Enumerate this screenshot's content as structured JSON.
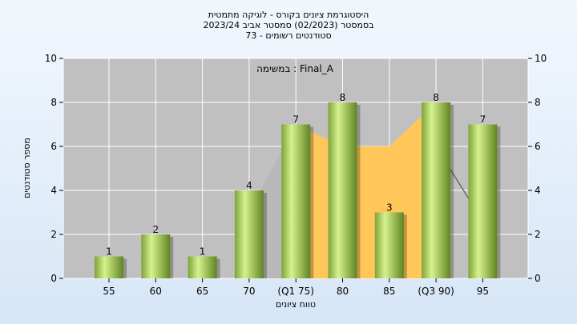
{
  "chart_data": {
    "type": "bar",
    "title_lines": [
      "היסטוגרמת ציונים בקורס - לוגיקה מתמטית",
      "בסמסטר  (02/2023)  סמסטר אביב 2023/24",
      "סטודנטים רשומים - 73"
    ],
    "xlabel": "טווח ציונים",
    "ylabel": "מספר סטודנטים",
    "legend_text": "במשימה : Final_A",
    "categories": [
      "55",
      "60",
      "65",
      "70",
      "(Q1 75)",
      "80",
      "85",
      "(Q3 90)",
      "95"
    ],
    "values": [
      1,
      2,
      1,
      4,
      7,
      8,
      3,
      8,
      7
    ],
    "ylim": [
      0,
      10
    ],
    "yticks": [
      0,
      2,
      4,
      6,
      8,
      10
    ],
    "grid": true,
    "colors": {
      "plot_bg": "#c0c0c0",
      "bar_dark": "#6b8e23",
      "bar_light": "#d4f08a",
      "iqr_band": "#ffc65a",
      "outer_band": "#b8b8b8",
      "median_line": "#444444",
      "frame": "#ffffff"
    }
  }
}
